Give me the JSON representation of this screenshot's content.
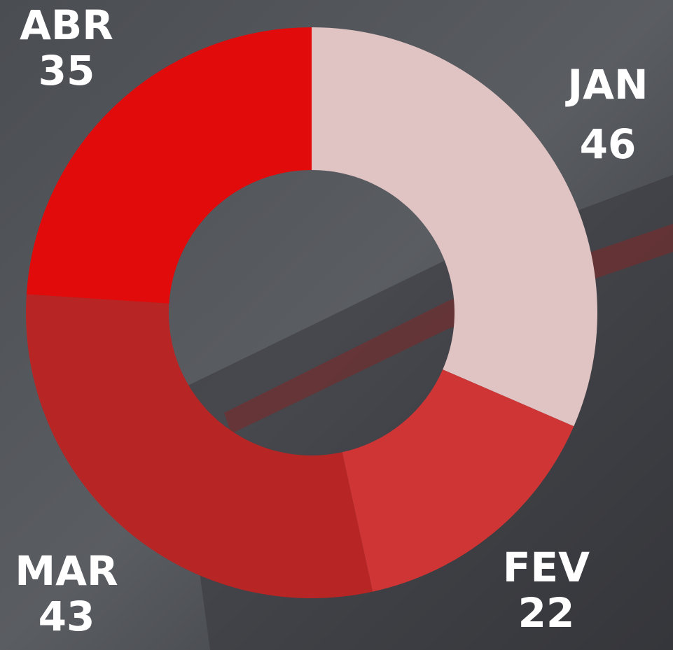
{
  "chart_data": {
    "type": "pie",
    "categories": [
      "JAN",
      "FEV",
      "MAR",
      "ABR"
    ],
    "values": [
      46,
      22,
      43,
      35
    ],
    "colors": [
      "#e0c3c3",
      "#d03535",
      "#b82525",
      "#e20b0b"
    ]
  }
}
